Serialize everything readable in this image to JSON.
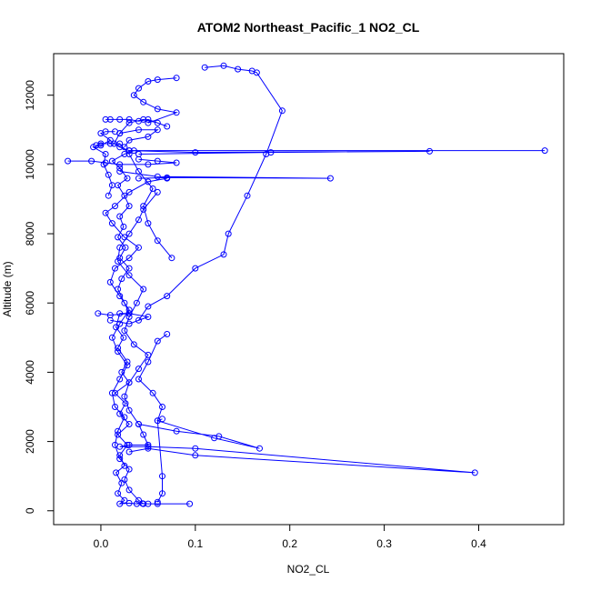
{
  "chart_data": {
    "type": "line",
    "title": "ATOM2 Northeast_Pacific_1 NO2_CL",
    "xlabel": "NO2_CL",
    "ylabel": "Altitude (m)",
    "xlim": [
      -0.05,
      0.49
    ],
    "ylim": [
      -400,
      13200
    ],
    "x_ticks": [
      0.0,
      0.1,
      0.2,
      0.3,
      0.4
    ],
    "x_tick_labels": [
      "0.0",
      "0.1",
      "0.2",
      "0.3",
      "0.4"
    ],
    "y_ticks": [
      0,
      2000,
      4000,
      6000,
      8000,
      10000,
      12000
    ],
    "y_tick_labels": [
      "0",
      "2000",
      "4000",
      "6000",
      "8000",
      "10000",
      "12000"
    ],
    "grid": false,
    "series": [
      {
        "color": "#0000ff",
        "marker": "open-circle",
        "points": [
          [
            0.094,
            200
          ],
          [
            0.06,
            200
          ],
          [
            0.05,
            200
          ],
          [
            0.044,
            210
          ],
          [
            0.038,
            200
          ],
          [
            0.03,
            220
          ],
          [
            0.02,
            200
          ],
          [
            0.025,
            300
          ],
          [
            0.018,
            500
          ],
          [
            0.022,
            800
          ],
          [
            0.016,
            1100
          ],
          [
            0.025,
            1300
          ],
          [
            0.02,
            1600
          ],
          [
            0.028,
            1900
          ],
          [
            0.018,
            2200
          ],
          [
            0.03,
            2500
          ],
          [
            0.02,
            2800
          ],
          [
            0.026,
            3100
          ],
          [
            0.015,
            3400
          ],
          [
            0.03,
            3700
          ],
          [
            0.022,
            4000
          ],
          [
            0.028,
            4300
          ],
          [
            0.018,
            4700
          ],
          [
            0.024,
            5000
          ],
          [
            0.016,
            5300
          ],
          [
            0.02,
            5700
          ],
          [
            0.03,
            5700
          ],
          [
            0.025,
            6000
          ],
          [
            0.018,
            6400
          ],
          [
            0.022,
            6700
          ],
          [
            0.03,
            7000
          ],
          [
            0.02,
            7300
          ],
          [
            0.026,
            7600
          ],
          [
            0.018,
            7900
          ],
          [
            0.024,
            8200
          ],
          [
            0.02,
            8500
          ],
          [
            0.03,
            8800
          ],
          [
            0.025,
            9100
          ],
          [
            0.018,
            9400
          ],
          [
            0.028,
            9600
          ],
          [
            0.02,
            9900
          ],
          [
            0.012,
            10100
          ],
          [
            0.025,
            10300
          ],
          [
            0.035,
            10400
          ],
          [
            0.47,
            10400
          ],
          [
            0.03,
            10400
          ],
          [
            0.02,
            10500
          ],
          [
            0.014,
            10600
          ],
          [
            0.02,
            10900
          ],
          [
            0.03,
            11200
          ],
          [
            0.045,
            11300
          ],
          [
            0.06,
            11200
          ],
          [
            0.07,
            11100
          ],
          [
            0.05,
            11300
          ],
          [
            0.04,
            11250
          ],
          [
            0.03,
            11300
          ],
          [
            0.02,
            11300
          ],
          [
            0.01,
            11300
          ],
          [
            0.005,
            11300
          ]
        ]
      },
      {
        "color": "#0000ff",
        "marker": "open-circle",
        "points": [
          [
            0.11,
            12800
          ],
          [
            0.13,
            12850
          ],
          [
            0.145,
            12750
          ],
          [
            0.16,
            12700
          ],
          [
            0.165,
            12650
          ],
          [
            0.192,
            11550
          ],
          [
            0.175,
            10300
          ],
          [
            0.155,
            9100
          ],
          [
            0.135,
            8000
          ],
          [
            0.13,
            7400
          ],
          [
            0.1,
            7000
          ],
          [
            0.07,
            6200
          ],
          [
            0.05,
            5900
          ],
          [
            0.04,
            5500
          ]
        ]
      },
      {
        "color": "#0000ff",
        "marker": "open-circle",
        "points": [
          [
            0.08,
            12500
          ],
          [
            0.06,
            12450
          ],
          [
            0.05,
            12400
          ],
          [
            0.04,
            12200
          ],
          [
            0.035,
            12000
          ],
          [
            0.045,
            11800
          ],
          [
            0.06,
            11600
          ],
          [
            0.08,
            11500
          ],
          [
            0.05,
            11200
          ]
        ]
      },
      {
        "color": "#0000ff",
        "marker": "open-circle",
        "points": [
          [
            -0.035,
            10100
          ],
          [
            -0.01,
            10100
          ],
          [
            0.005,
            10050
          ],
          [
            0.02,
            10000
          ],
          [
            0.05,
            10000
          ],
          [
            0.08,
            10050
          ],
          [
            0.06,
            10100
          ],
          [
            0.04,
            10150
          ]
        ]
      },
      {
        "color": "#0000ff",
        "marker": "open-circle",
        "points": [
          [
            0.03,
            10400
          ],
          [
            0.1,
            10350
          ],
          [
            0.348,
            10380
          ],
          [
            0.18,
            10350
          ],
          [
            0.04,
            10300
          ]
        ]
      },
      {
        "color": "#0000ff",
        "marker": "open-circle",
        "points": [
          [
            0.02,
            9800
          ],
          [
            0.06,
            9650
          ],
          [
            0.243,
            9600
          ],
          [
            0.07,
            9620
          ],
          [
            0.04,
            9600
          ]
        ]
      },
      {
        "color": "#0000ff",
        "marker": "open-circle",
        "points": [
          [
            0.06,
            9200
          ],
          [
            0.045,
            8700
          ],
          [
            0.04,
            8400
          ],
          [
            0.03,
            8000
          ],
          [
            0.02,
            7600
          ],
          [
            0.018,
            7200
          ],
          [
            0.03,
            6800
          ],
          [
            0.045,
            6400
          ],
          [
            0.038,
            6000
          ],
          [
            0.03,
            5600
          ],
          [
            0.025,
            5200
          ],
          [
            0.035,
            4800
          ],
          [
            0.05,
            4500
          ],
          [
            0.04,
            4100
          ],
          [
            0.03,
            3700
          ],
          [
            0.025,
            3300
          ],
          [
            0.03,
            2900
          ],
          [
            0.04,
            2500
          ],
          [
            0.045,
            2200
          ],
          [
            0.05,
            1900
          ],
          [
            0.03,
            1900
          ],
          [
            0.02,
            1850
          ],
          [
            0.05,
            1850
          ],
          [
            0.1,
            1800
          ],
          [
            0.396,
            1100
          ],
          [
            0.1,
            1600
          ],
          [
            0.05,
            1800
          ],
          [
            0.03,
            1700
          ]
        ]
      },
      {
        "color": "#0000ff",
        "marker": "open-circle",
        "points": [
          [
            0.04,
            2500
          ],
          [
            0.08,
            2300
          ],
          [
            0.125,
            2150
          ],
          [
            0.168,
            1800
          ],
          [
            0.12,
            2100
          ],
          [
            0.06,
            2600
          ],
          [
            0.065,
            2650
          ]
        ]
      },
      {
        "color": "#0000ff",
        "marker": "open-circle",
        "points": [
          [
            0.07,
            5100
          ],
          [
            0.06,
            4900
          ],
          [
            0.05,
            4300
          ],
          [
            0.04,
            3800
          ],
          [
            0.055,
            3400
          ],
          [
            0.065,
            3000
          ],
          [
            0.06,
            2600
          ],
          [
            0.065,
            1000
          ],
          [
            0.065,
            500
          ],
          [
            0.06,
            250
          ]
        ]
      },
      {
        "color": "#0000ff",
        "marker": "open-circle",
        "points": [
          [
            -0.003,
            5700
          ],
          [
            0.01,
            5650
          ],
          [
            0.03,
            5700
          ],
          [
            0.05,
            5600
          ],
          [
            0.03,
            5400
          ],
          [
            0.01,
            5500
          ]
        ]
      },
      {
        "color": "#0000ff",
        "marker": "open-circle",
        "points": [
          [
            0.07,
            9600
          ],
          [
            0.05,
            9500
          ],
          [
            0.03,
            9200
          ],
          [
            0.015,
            8800
          ],
          [
            0.005,
            8600
          ],
          [
            0.012,
            8300
          ],
          [
            0.025,
            7900
          ],
          [
            0.04,
            7600
          ],
          [
            0.03,
            7300
          ],
          [
            0.015,
            7000
          ],
          [
            0.01,
            6600
          ],
          [
            0.02,
            6200
          ],
          [
            0.03,
            5800
          ],
          [
            0.02,
            5400
          ],
          [
            0.012,
            5000
          ],
          [
            0.018,
            4600
          ],
          [
            0.028,
            4200
          ],
          [
            0.02,
            3800
          ],
          [
            0.012,
            3400
          ],
          [
            0.015,
            3000
          ],
          [
            0.025,
            2700
          ],
          [
            0.018,
            2300
          ],
          [
            0.015,
            1900
          ],
          [
            0.02,
            1500
          ],
          [
            0.03,
            1200
          ],
          [
            0.025,
            900
          ],
          [
            0.03,
            600
          ],
          [
            0.04,
            300
          ],
          [
            0.045,
            200
          ]
        ]
      },
      {
        "color": "#0000ff",
        "marker": "open-circle",
        "points": [
          [
            0.075,
            7300
          ],
          [
            0.06,
            7800
          ],
          [
            0.05,
            8300
          ],
          [
            0.045,
            8800
          ],
          [
            0.055,
            9300
          ],
          [
            0.04,
            9800
          ],
          [
            0.03,
            10300
          ],
          [
            0.02,
            10600
          ],
          [
            0.01,
            10600
          ],
          [
            0.0,
            10600
          ],
          [
            -0.005,
            10550
          ]
        ]
      },
      {
        "color": "#0000ff",
        "marker": "open-circle",
        "points": [
          [
            0.02,
            10900
          ],
          [
            0.04,
            11000
          ],
          [
            0.06,
            11000
          ],
          [
            0.05,
            10800
          ],
          [
            0.03,
            10700
          ],
          [
            0.025,
            10500
          ]
        ]
      },
      {
        "color": "#0000ff",
        "marker": "open-circle",
        "points": [
          [
            0.015,
            10950
          ],
          [
            0.005,
            10950
          ],
          [
            0.0,
            10900
          ],
          [
            0.01,
            10700
          ],
          [
            0.0,
            10550
          ],
          [
            -0.008,
            10500
          ],
          [
            0.005,
            10300
          ],
          [
            0.003,
            10000
          ],
          [
            0.008,
            9700
          ],
          [
            0.012,
            9400
          ],
          [
            0.008,
            9100
          ]
        ]
      }
    ]
  }
}
